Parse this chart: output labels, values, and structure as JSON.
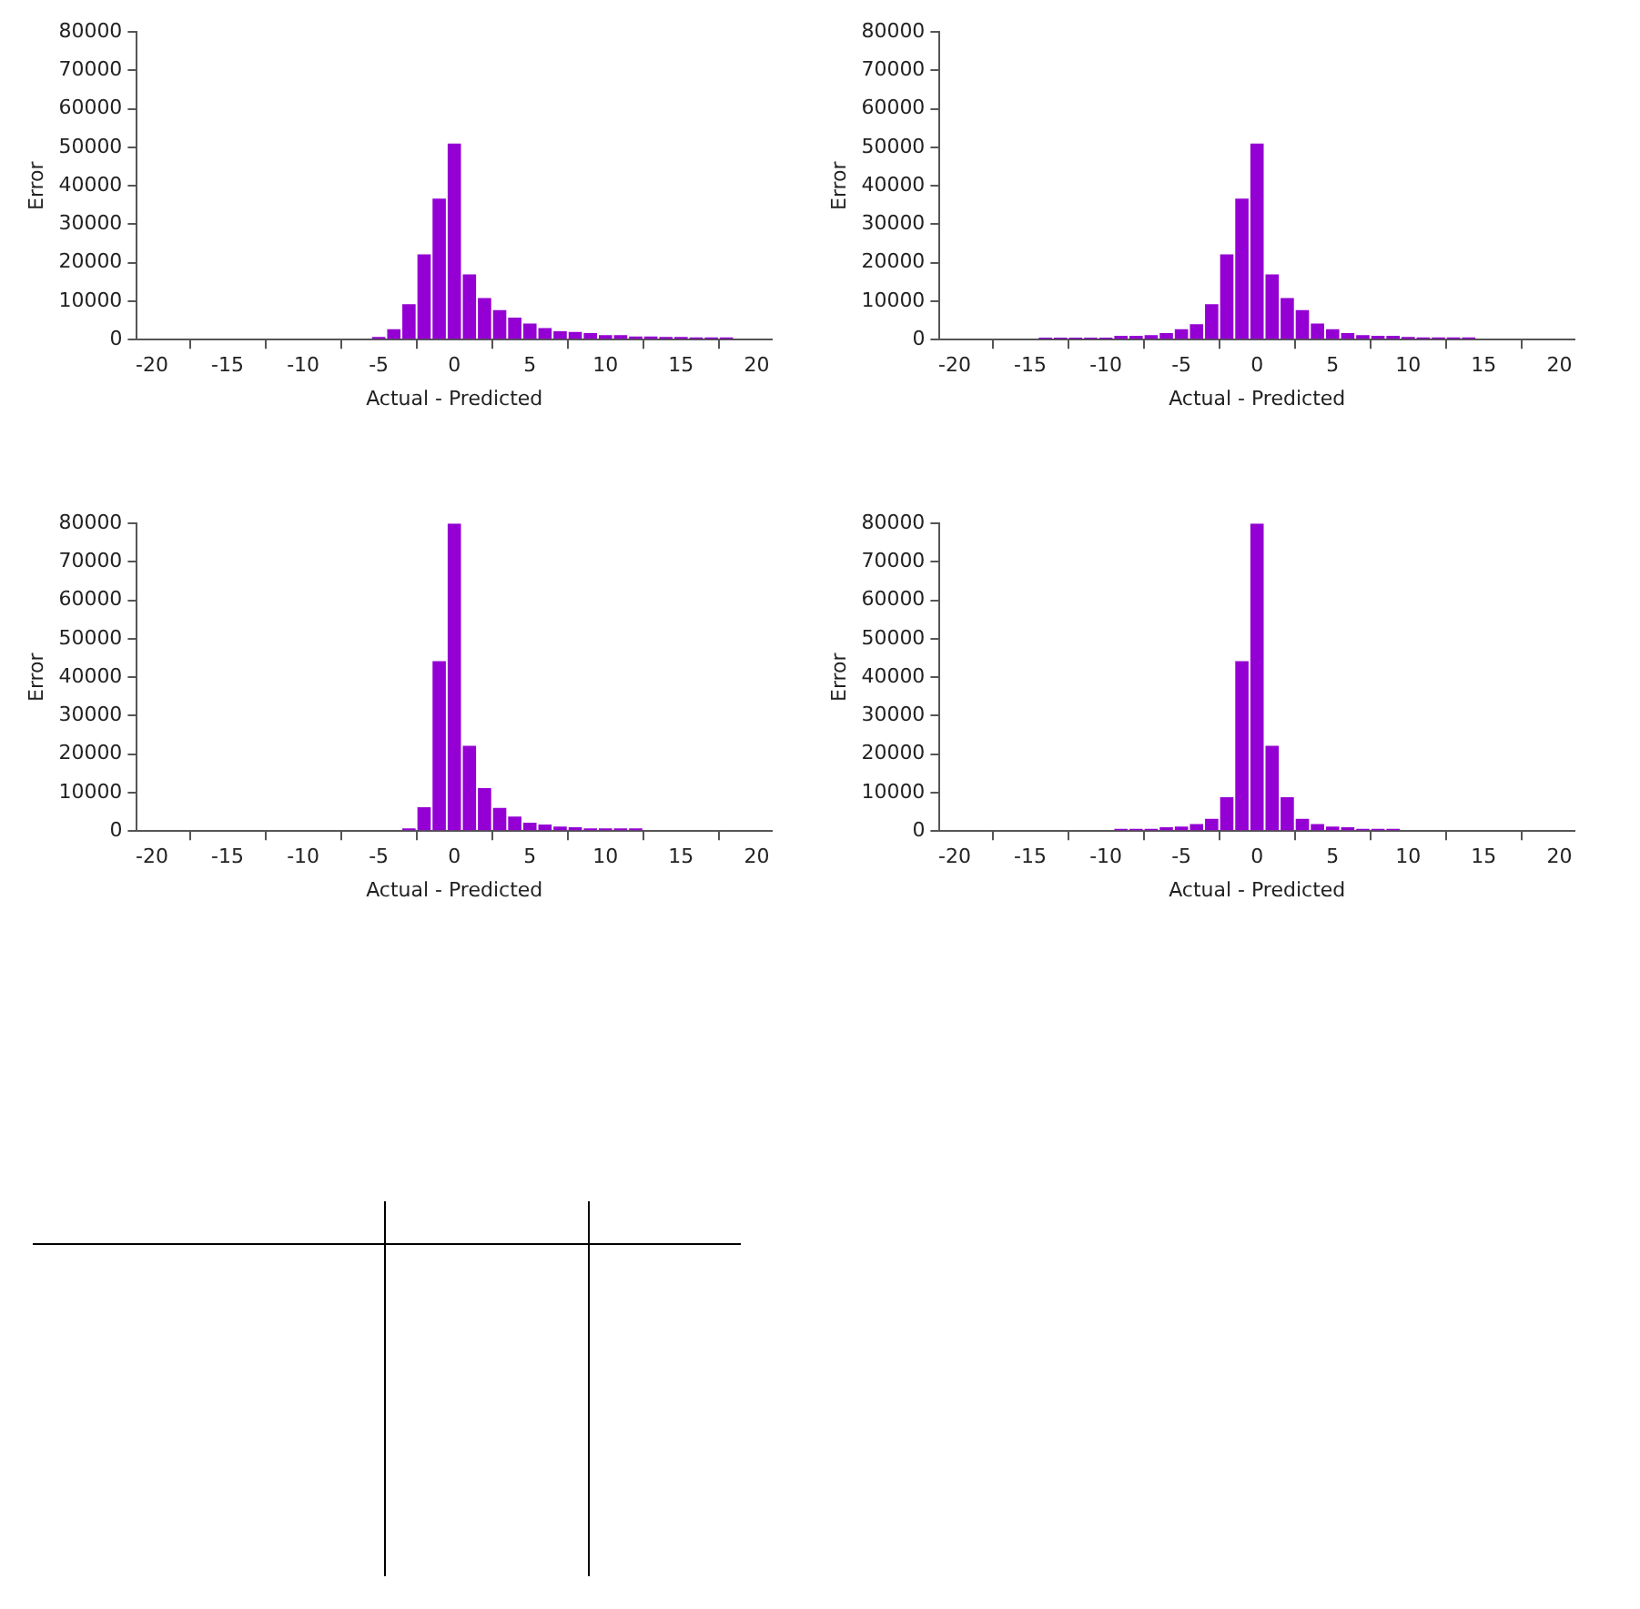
{
  "chart_data": [
    {
      "type": "histogram",
      "xlabel": "Actual - Predicted",
      "ylabel": "Error",
      "color": "#9400d3",
      "grid": false,
      "xlim": [
        -21,
        21
      ],
      "xticks": [
        -20,
        -15,
        -10,
        -5,
        0,
        5,
        10,
        15,
        20
      ],
      "ylim": [
        0,
        80000
      ],
      "yticks": [
        0,
        10000,
        20000,
        30000,
        40000,
        50000,
        60000,
        70000,
        80000
      ],
      "bins": [
        -5.5,
        -4.5,
        -3.5,
        -2.5,
        -1.5,
        -0.5,
        0.5,
        1.5,
        2.5,
        3.5,
        4.5,
        5.5,
        6.5,
        7.5,
        8.5,
        9.5,
        10.5,
        11.5,
        12.5,
        13.5,
        14.5,
        15.5,
        16.5,
        17.5,
        18.5
      ],
      "values": [
        700,
        2700,
        9200,
        22200,
        36700,
        51000,
        17000,
        10800,
        7700,
        5700,
        4200,
        3000,
        2200,
        2000,
        1700,
        1200,
        1200,
        800,
        800,
        700,
        700,
        600,
        600,
        600
      ]
    },
    {
      "type": "histogram",
      "xlabel": "Actual - Predicted",
      "ylabel": "Error",
      "color": "#9400d3",
      "grid": false,
      "xlim": [
        -21,
        21
      ],
      "xticks": [
        -20,
        -15,
        -10,
        -5,
        0,
        5,
        10,
        15,
        20
      ],
      "ylim": [
        0,
        80000
      ],
      "yticks": [
        0,
        10000,
        20000,
        30000,
        40000,
        50000,
        60000,
        70000,
        80000
      ],
      "bins": [
        -14.5,
        -13.5,
        -12.5,
        -11.5,
        -10.5,
        -9.5,
        -8.5,
        -7.5,
        -6.5,
        -5.5,
        -4.5,
        -3.5,
        -2.5,
        -1.5,
        -0.5,
        0.5,
        1.5,
        2.5,
        3.5,
        4.5,
        5.5,
        6.5,
        7.5,
        8.5,
        9.5,
        10.5,
        11.5,
        12.5,
        13.5,
        14.5
      ],
      "values": [
        500,
        500,
        500,
        500,
        500,
        1000,
        1000,
        1200,
        1700,
        2700,
        4000,
        9200,
        22200,
        36700,
        51000,
        17000,
        10800,
        7700,
        4200,
        2700,
        1700,
        1200,
        1000,
        1000,
        700,
        600,
        600,
        600,
        600
      ]
    },
    {
      "type": "histogram",
      "xlabel": "Actual - Predicted",
      "ylabel": "Error",
      "color": "#9400d3",
      "grid": false,
      "xlim": [
        -21,
        21
      ],
      "xticks": [
        -20,
        -15,
        -10,
        -5,
        0,
        5,
        10,
        15,
        20
      ],
      "ylim": [
        0,
        80000
      ],
      "yticks": [
        0,
        10000,
        20000,
        30000,
        40000,
        50000,
        60000,
        70000,
        80000
      ],
      "bins": [
        -3.5,
        -2.5,
        -1.5,
        -0.5,
        0.5,
        1.5,
        2.5,
        3.5,
        4.5,
        5.5,
        6.5,
        7.5,
        8.5,
        9.5,
        10.5,
        11.5,
        12.5
      ],
      "values": [
        700,
        6200,
        44200,
        80000,
        22200,
        11200,
        6000,
        3800,
        2200,
        1700,
        1200,
        1000,
        700,
        700,
        700,
        700
      ]
    },
    {
      "type": "histogram",
      "xlabel": "Actual - Predicted",
      "ylabel": "Error",
      "color": "#9400d3",
      "grid": false,
      "xlim": [
        -21,
        21
      ],
      "xticks": [
        -20,
        -15,
        -10,
        -5,
        0,
        5,
        10,
        15,
        20
      ],
      "ylim": [
        0,
        80000
      ],
      "yticks": [
        0,
        10000,
        20000,
        30000,
        40000,
        50000,
        60000,
        70000,
        80000
      ],
      "bins": [
        -9.5,
        -8.5,
        -7.5,
        -6.5,
        -5.5,
        -4.5,
        -3.5,
        -2.5,
        -1.5,
        -0.5,
        0.5,
        1.5,
        2.5,
        3.5,
        4.5,
        5.5,
        6.5,
        7.5,
        8.5,
        9.5
      ],
      "values": [
        600,
        600,
        600,
        1000,
        1200,
        1800,
        3200,
        8800,
        44200,
        80000,
        22200,
        8800,
        3200,
        1800,
        1200,
        1000,
        600,
        600,
        600
      ]
    }
  ]
}
